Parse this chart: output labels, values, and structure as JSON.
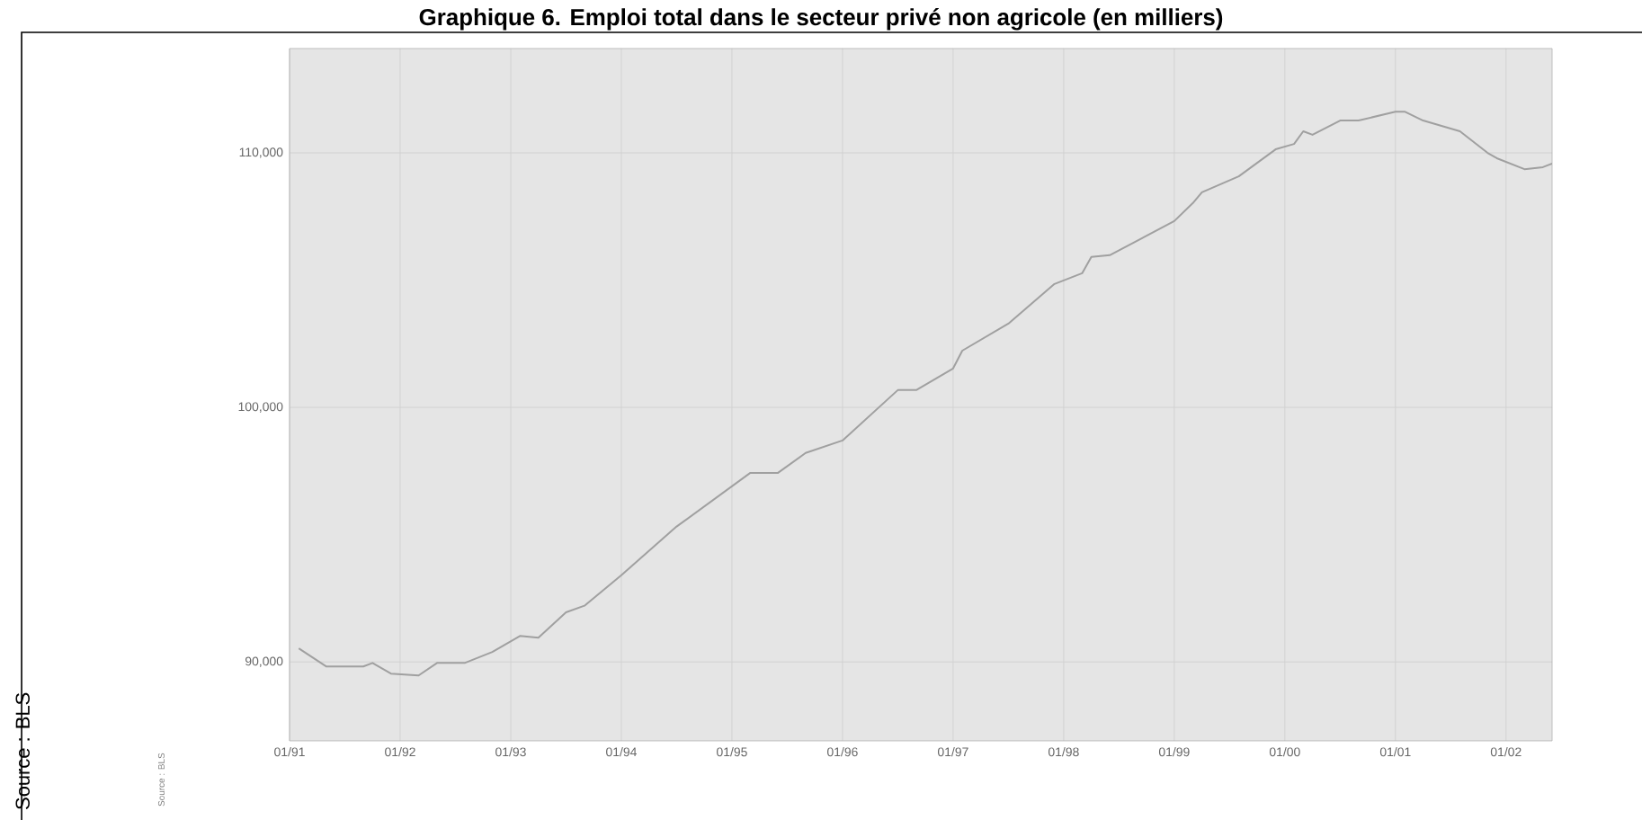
{
  "chart_data": {
    "type": "line",
    "title": "Graphique 6. Emploi total dans le secteur privé non agricole (en milliers)",
    "x": [
      "1991-02",
      "1991-05",
      "1991-09",
      "1991-10",
      "1991-12",
      "1992-03",
      "1992-05",
      "1992-08",
      "1992-11",
      "1993-02",
      "1993-04",
      "1993-07",
      "1993-09",
      "1994-01",
      "1994-07",
      "1995-03",
      "1995-06",
      "1995-09",
      "1996-01",
      "1996-07",
      "1996-09",
      "1997-01",
      "1997-02",
      "1997-07",
      "1997-12",
      "1998-03",
      "1998-04",
      "1998-06",
      "1999-01",
      "1999-03",
      "1999-04",
      "1999-08",
      "1999-12",
      "2000-02",
      "2000-03",
      "2000-04",
      "2000-07",
      "2000-09",
      "2001-01",
      "2001-02",
      "2001-04",
      "2001-08",
      "2001-11",
      "2001-12",
      "2002-03",
      "2002-05",
      "2002-06"
    ],
    "values": [
      90530,
      89820,
      89820,
      89960,
      89540,
      89470,
      89960,
      89960,
      90390,
      91020,
      90950,
      91950,
      92210,
      93410,
      95320,
      97430,
      97430,
      98210,
      98700,
      100680,
      100680,
      101530,
      102230,
      103290,
      104850,
      105270,
      105910,
      105980,
      107320,
      108020,
      108450,
      109080,
      110140,
      110350,
      110850,
      110710,
      111270,
      111270,
      111620,
      111620,
      111270,
      110850,
      110000,
      109790,
      109360,
      109440,
      109580
    ],
    "color": "#a0a0a0",
    "xlim": [
      "1991-01",
      "2002-06"
    ],
    "ylim": [
      86900,
      114100
    ],
    "xticks": [
      {
        "value": "1991-01",
        "label": "01/91"
      },
      {
        "value": "1992-01",
        "label": "01/92"
      },
      {
        "value": "1993-01",
        "label": "01/93"
      },
      {
        "value": "1994-01",
        "label": "01/94"
      },
      {
        "value": "1995-01",
        "label": "01/95"
      },
      {
        "value": "1996-01",
        "label": "01/96"
      },
      {
        "value": "1997-01",
        "label": "01/97"
      },
      {
        "value": "1998-01",
        "label": "01/98"
      },
      {
        "value": "1999-01",
        "label": "01/99"
      },
      {
        "value": "2000-01",
        "label": "01/00"
      },
      {
        "value": "2001-01",
        "label": "01/01"
      },
      {
        "value": "2002-01",
        "label": "01/02"
      }
    ],
    "yticks": [
      {
        "value": 90000,
        "label": "90,000"
      },
      {
        "value": 100000,
        "label": "100,000"
      },
      {
        "value": 110000,
        "label": "110,000"
      }
    ],
    "grid": true,
    "annotations": [
      "Source : BLS",
      "Source : BLS"
    ]
  }
}
